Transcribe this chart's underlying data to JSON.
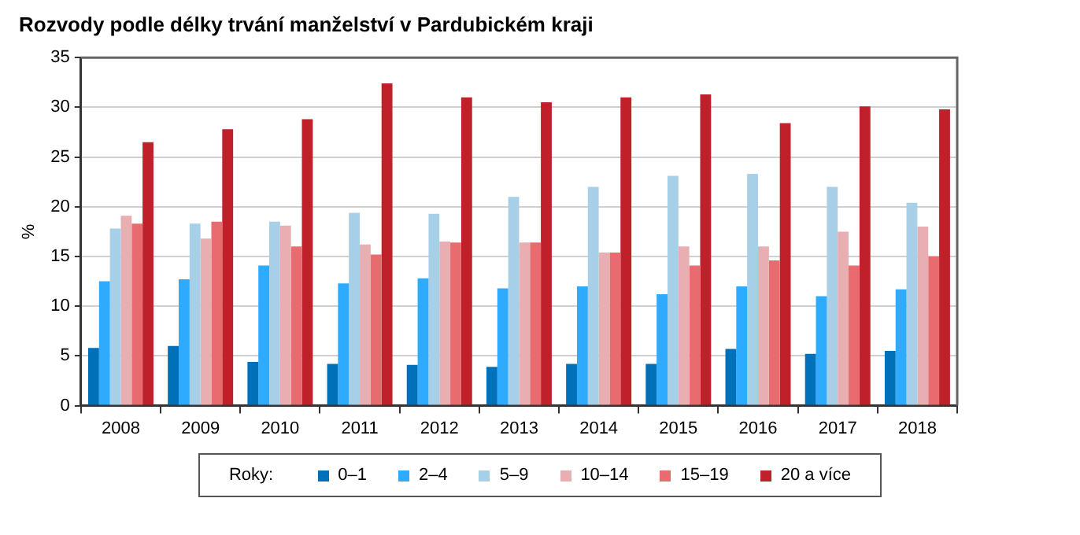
{
  "chart_data": {
    "type": "bar",
    "title": "Rozvody podle délky trvání manželství v Pardubickém kraji",
    "ylabel": "%",
    "legend_title": "Roky:",
    "categories": [
      "2008",
      "2009",
      "2010",
      "2011",
      "2012",
      "2013",
      "2014",
      "2015",
      "2016",
      "2017",
      "2018"
    ],
    "series": [
      {
        "name": "0–1",
        "color": "#0070b8",
        "values": [
          5.8,
          6.0,
          4.4,
          4.2,
          4.1,
          3.9,
          4.2,
          4.2,
          5.7,
          5.2,
          5.5
        ]
      },
      {
        "name": "2–4",
        "color": "#2eaaff",
        "values": [
          12.5,
          12.7,
          14.1,
          12.3,
          12.8,
          11.8,
          12.0,
          11.2,
          12.0,
          11.0,
          11.7
        ]
      },
      {
        "name": "5–9",
        "color": "#a8cfe8",
        "values": [
          17.8,
          18.3,
          18.5,
          19.4,
          19.3,
          21.0,
          22.0,
          23.1,
          23.3,
          22.0,
          20.4
        ]
      },
      {
        "name": "10–14",
        "color": "#e8aeb2",
        "values": [
          19.1,
          16.8,
          18.1,
          16.2,
          16.5,
          16.4,
          15.4,
          16.0,
          16.0,
          17.5,
          18.0
        ]
      },
      {
        "name": "15–19",
        "color": "#e86b70",
        "values": [
          18.3,
          18.5,
          16.0,
          15.2,
          16.4,
          16.4,
          15.4,
          14.1,
          14.6,
          14.1,
          15.0
        ]
      },
      {
        "name": "20 a více",
        "color": "#c0202a",
        "values": [
          26.5,
          27.8,
          28.8,
          32.4,
          31.0,
          30.5,
          31.0,
          31.3,
          28.4,
          30.1,
          29.8
        ]
      }
    ],
    "ylim": [
      0,
      35
    ],
    "yticks": [
      0,
      5,
      10,
      15,
      20,
      25,
      30,
      35
    ],
    "grid": "y",
    "legend": "bottom"
  }
}
